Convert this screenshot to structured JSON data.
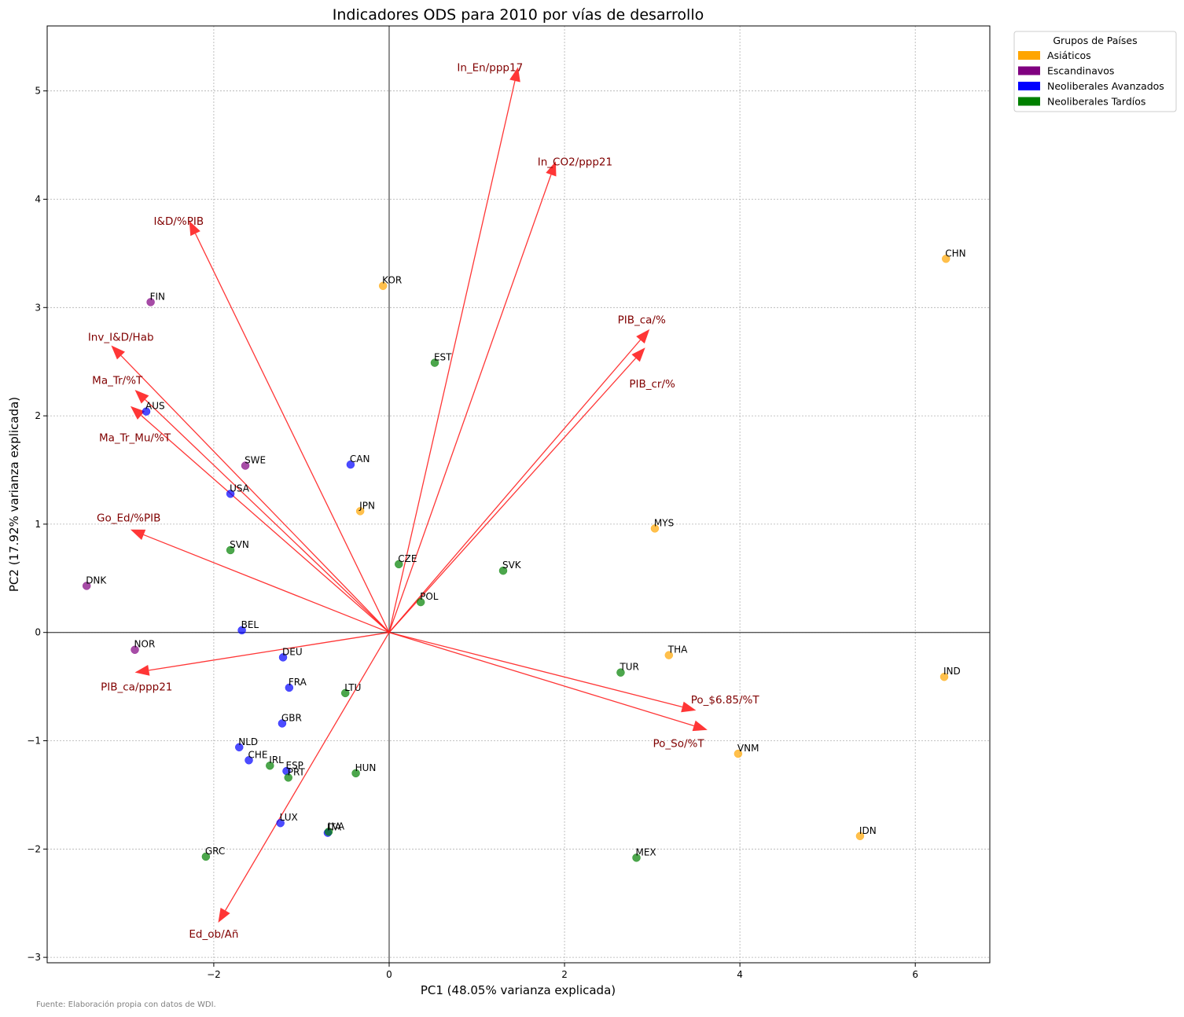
{
  "chart_data": {
    "type": "scatter",
    "title": "Indicadores ODS para 2010 por vías de desarrollo",
    "xlabel": "PC1 (48.05% varianza explicada)",
    "ylabel": "PC2 (17.92% varianza explicada)",
    "xlim": [
      -3.9,
      6.85
    ],
    "ylim": [
      -3.05,
      5.6
    ],
    "xticks": [
      -2,
      0,
      2,
      4,
      6
    ],
    "xtick_labels": [
      "−2",
      "0",
      "2",
      "4",
      "6"
    ],
    "yticks": [
      -3,
      -2,
      -1,
      0,
      1,
      2,
      3,
      4,
      5
    ],
    "ytick_labels": [
      "−3",
      "−2",
      "−1",
      "0",
      "1",
      "2",
      "3",
      "4",
      "5"
    ],
    "grid": true,
    "legend": {
      "title": "Grupos de Países",
      "placement": "outside-top-right",
      "entries": [
        {
          "label": "Asiáticos",
          "color": "#ffa500"
        },
        {
          "label": "Escandinavos",
          "color": "#800080"
        },
        {
          "label": "Neoliberales Avanzados",
          "color": "#0000ff"
        },
        {
          "label": "Neoliberales Tardíos",
          "color": "#008000"
        }
      ]
    },
    "series": [
      {
        "name": "Asiáticos",
        "color": "#ffa500",
        "points": [
          {
            "label": "CHN",
            "x": 6.35,
            "y": 3.45
          },
          {
            "label": "KOR",
            "x": -0.07,
            "y": 3.2
          },
          {
            "label": "JPN",
            "x": -0.33,
            "y": 1.12
          },
          {
            "label": "MYS",
            "x": 3.03,
            "y": 0.96
          },
          {
            "label": "THA",
            "x": 3.19,
            "y": -0.21
          },
          {
            "label": "IND",
            "x": 6.33,
            "y": -0.41
          },
          {
            "label": "VNM",
            "x": 3.98,
            "y": -1.12
          },
          {
            "label": "IDN",
            "x": 5.37,
            "y": -1.88
          }
        ]
      },
      {
        "name": "Escandinavos",
        "color": "#800080",
        "points": [
          {
            "label": "FIN",
            "x": -2.72,
            "y": 3.05
          },
          {
            "label": "SWE",
            "x": -1.64,
            "y": 1.54
          },
          {
            "label": "DNK",
            "x": -3.45,
            "y": 0.43
          },
          {
            "label": "NOR",
            "x": -2.9,
            "y": -0.16
          }
        ]
      },
      {
        "name": "Neoliberales Avanzados",
        "color": "#0000ff",
        "points": [
          {
            "label": "AUS",
            "x": -2.77,
            "y": 2.04
          },
          {
            "label": "CAN",
            "x": -0.44,
            "y": 1.55
          },
          {
            "label": "USA",
            "x": -1.81,
            "y": 1.28
          },
          {
            "label": "BEL",
            "x": -1.68,
            "y": 0.02
          },
          {
            "label": "DEU",
            "x": -1.21,
            "y": -0.23
          },
          {
            "label": "FRA",
            "x": -1.14,
            "y": -0.51
          },
          {
            "label": "GBR",
            "x": -1.22,
            "y": -0.84
          },
          {
            "label": "NLD",
            "x": -1.71,
            "y": -1.06
          },
          {
            "label": "CHE",
            "x": -1.6,
            "y": -1.18
          },
          {
            "label": "ESP",
            "x": -1.17,
            "y": -1.28
          },
          {
            "label": "LUX",
            "x": -1.24,
            "y": -1.76
          },
          {
            "label": "ITA",
            "x": -0.7,
            "y": -1.85
          }
        ]
      },
      {
        "name": "Neoliberales Tardíos",
        "color": "#008000",
        "points": [
          {
            "label": "EST",
            "x": 0.52,
            "y": 2.49
          },
          {
            "label": "CZE",
            "x": 0.11,
            "y": 0.63
          },
          {
            "label": "SVK",
            "x": 1.3,
            "y": 0.57
          },
          {
            "label": "SVN",
            "x": -1.81,
            "y": 0.76
          },
          {
            "label": "POL",
            "x": 0.36,
            "y": 0.28
          },
          {
            "label": "TUR",
            "x": 2.64,
            "y": -0.37
          },
          {
            "label": "LTU",
            "x": -0.5,
            "y": -0.56
          },
          {
            "label": "IRL",
            "x": -1.36,
            "y": -1.23
          },
          {
            "label": "PRT",
            "x": -1.15,
            "y": -1.34
          },
          {
            "label": "HUN",
            "x": -0.38,
            "y": -1.3
          },
          {
            "label": "LVA",
            "x": -0.69,
            "y": -1.84
          },
          {
            "label": "GRC",
            "x": -2.09,
            "y": -2.07
          },
          {
            "label": "MEX",
            "x": 2.82,
            "y": -2.08
          }
        ]
      }
    ],
    "loadings": [
      {
        "label": "In_En/ppp17",
        "x": 1.47,
        "y": 5.22,
        "lx": 1.15,
        "ly": 5.22
      },
      {
        "label": "In_CO2/ppp21",
        "x": 1.9,
        "y": 4.35,
        "lx": 2.12,
        "ly": 4.35
      },
      {
        "label": "I&D/%PIB",
        "x": -2.28,
        "y": 3.8,
        "lx": -2.4,
        "ly": 3.8
      },
      {
        "label": "PIB_ca/%",
        "x": 2.97,
        "y": 2.8,
        "lx": 2.88,
        "ly": 2.89
      },
      {
        "label": "PIB_cr/%",
        "x": 2.92,
        "y": 2.63,
        "lx": 3.0,
        "ly": 2.3
      },
      {
        "label": "Inv_I&D/Hab",
        "x": -3.17,
        "y": 2.65,
        "lx": -3.06,
        "ly": 2.73
      },
      {
        "label": "Ma_Tr/%T",
        "x": -2.9,
        "y": 2.24,
        "lx": -3.1,
        "ly": 2.33
      },
      {
        "label": "Ma_Tr_Mu/%T",
        "x": -2.95,
        "y": 2.09,
        "lx": -2.9,
        "ly": 1.8
      },
      {
        "label": "Go_Ed/%PIB",
        "x": -2.95,
        "y": 0.95,
        "lx": -2.97,
        "ly": 1.06
      },
      {
        "label": "PIB_ca/ppp21",
        "x": -2.9,
        "y": -0.37,
        "lx": -2.88,
        "ly": -0.5
      },
      {
        "label": "Po_$6.85/%T",
        "x": 3.5,
        "y": -0.72,
        "lx": 3.83,
        "ly": -0.62
      },
      {
        "label": "Po_So/%T",
        "x": 3.63,
        "y": -0.9,
        "lx": 3.3,
        "ly": -1.02
      },
      {
        "label": "Ed_ob/Añ",
        "x": -1.95,
        "y": -2.68,
        "lx": -2.0,
        "ly": -2.78
      }
    ]
  },
  "source_note": "Fuente: Elaboración propia con datos de WDI."
}
